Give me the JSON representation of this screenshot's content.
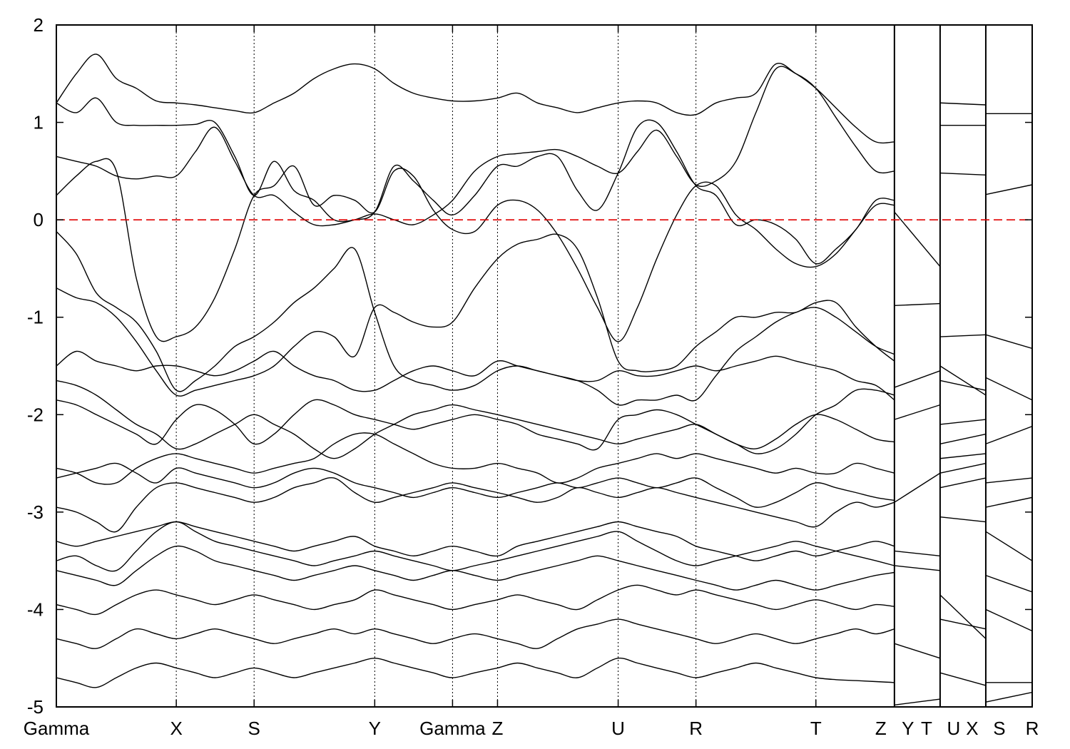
{
  "chart_data": {
    "type": "line",
    "title": "",
    "xlabel": "",
    "ylabel": "",
    "ylim": [
      -5,
      2
    ],
    "yticks": [
      2,
      1,
      0,
      -1,
      -2,
      -3,
      -4,
      -5
    ],
    "ytick_labels": [
      "2",
      "1",
      "0",
      "-1",
      "-2",
      "-3",
      "-4",
      "-5"
    ],
    "xlim": [
      0,
      1367
    ],
    "kpoints": [
      {
        "label": "Gamma",
        "x": 0
      },
      {
        "label": "X",
        "x": 168
      },
      {
        "label": "S",
        "x": 277
      },
      {
        "label": "Y",
        "x": 446
      },
      {
        "label": "Gamma",
        "x": 555
      },
      {
        "label": "Z",
        "x": 618
      },
      {
        "label": "U",
        "x": 787
      },
      {
        "label": "R",
        "x": 896
      },
      {
        "label": "T",
        "x": 1064
      },
      {
        "label": "Z",
        "x": 1174
      },
      {
        "label": "Y",
        "x": 1174
      },
      {
        "label": "T",
        "x": 1238
      },
      {
        "label": "U",
        "x": 1238
      },
      {
        "label": "X",
        "x": 1302
      },
      {
        "label": "S",
        "x": 1302
      },
      {
        "label": "R",
        "x": 1367
      }
    ],
    "kpath_labels": [
      "Gamma",
      "X",
      "S",
      "Y",
      "Gamma",
      "Z",
      "",
      "U",
      "R",
      "T",
      "Z",
      "Y",
      "T",
      "U",
      "X",
      "S",
      "R"
    ],
    "fermi_level": 0,
    "fermi_line_color": "#e00000",
    "band_color": "#000000",
    "gridlines": "vertical dotted at high-symmetry points",
    "legend": "none",
    "sampled_x": [
      0,
      28,
      56,
      84,
      112,
      140,
      168,
      195,
      222,
      250,
      277,
      305,
      333,
      361,
      389,
      418,
      446,
      473,
      500,
      528,
      555,
      586,
      618,
      646,
      674,
      702,
      730,
      758,
      787,
      814,
      841,
      869,
      896,
      924,
      952,
      980,
      1008,
      1036,
      1064,
      1092,
      1120,
      1148,
      1174
    ],
    "series": [
      {
        "values": [
          -0.12,
          -0.35,
          -0.75,
          -0.9,
          -1.05,
          -1.35,
          -1.75,
          -1.65,
          -1.5,
          -1.3,
          -1.2,
          -1.05,
          -0.85,
          -0.7,
          -0.5,
          -0.3,
          -0.95,
          -1.5,
          -1.65,
          -1.7,
          -1.75,
          -1.7,
          -1.55,
          -1.5,
          -1.55,
          -1.6,
          -1.65,
          -1.75,
          -1.9,
          -1.85,
          -1.85,
          -1.8,
          -1.85,
          -1.6,
          -1.35,
          -1.2,
          -1.05,
          -0.95,
          -0.9,
          -1.0,
          -1.15,
          -1.3,
          -1.38
        ]
      },
      {
        "values": [
          0.25,
          0.45,
          0.6,
          0.5,
          -0.6,
          -1.2,
          -1.2,
          -1.1,
          -0.8,
          -0.3,
          0.25,
          0.35,
          0.55,
          0.15,
          0.25,
          0.2,
          0.08,
          0.5,
          0.45,
          0.1,
          -0.1,
          -0.12,
          0.15,
          0.2,
          0.1,
          -0.15,
          -0.5,
          -0.9,
          -1.25,
          -0.9,
          -0.4,
          0.05,
          0.35,
          0.35,
          0.05,
          -0.1,
          -0.3,
          -0.45,
          -0.48,
          -0.35,
          -0.1,
          0.15,
          0.15
        ]
      },
      {
        "values": [
          0.65,
          0.6,
          0.55,
          0.45,
          0.42,
          0.45,
          0.45,
          0.7,
          0.95,
          0.6,
          0.25,
          0.25,
          0.08,
          -0.05,
          -0.05,
          0.0,
          0.06,
          0.0,
          -0.05,
          0.05,
          0.2,
          0.5,
          0.65,
          0.68,
          0.7,
          0.72,
          0.65,
          0.55,
          0.48,
          0.7,
          0.92,
          0.65,
          0.36,
          0.4,
          0.6,
          1.1,
          1.55,
          1.5,
          1.35,
          1.05,
          0.75,
          0.5,
          0.5
        ]
      },
      {
        "values": [
          1.2,
          1.1,
          1.25,
          1.0,
          0.97,
          0.97,
          0.97,
          0.98,
          1.0,
          0.65,
          0.25,
          0.6,
          0.3,
          0.2,
          0.0,
          0.0,
          0.08,
          0.55,
          0.4,
          0.2,
          0.05,
          0.25,
          0.55,
          0.55,
          0.65,
          0.65,
          0.3,
          0.1,
          0.48,
          0.95,
          1.0,
          0.7,
          0.35,
          0.25,
          -0.05,
          0.0,
          -0.05,
          -0.2,
          -0.45,
          -0.3,
          -0.1,
          0.2,
          0.2
        ]
      },
      {
        "values": [
          1.2,
          1.5,
          1.7,
          1.45,
          1.35,
          1.22,
          1.2,
          1.18,
          1.15,
          1.12,
          1.1,
          1.2,
          1.3,
          1.45,
          1.55,
          1.6,
          1.55,
          1.4,
          1.3,
          1.25,
          1.22,
          1.22,
          1.25,
          1.3,
          1.2,
          1.15,
          1.1,
          1.15,
          1.2,
          1.22,
          1.2,
          1.1,
          1.08,
          1.2,
          1.25,
          1.3,
          1.6,
          1.5,
          1.35,
          1.15,
          0.95,
          0.8,
          0.8
        ]
      },
      {
        "values": [
          -0.7,
          -0.8,
          -0.85,
          -1.0,
          -1.25,
          -1.55,
          -1.8,
          -1.75,
          -1.7,
          -1.65,
          -1.6,
          -1.5,
          -1.3,
          -1.15,
          -1.2,
          -1.4,
          -0.9,
          -0.95,
          -1.05,
          -1.1,
          -1.05,
          -0.7,
          -0.4,
          -0.25,
          -0.2,
          -0.15,
          -0.3,
          -0.8,
          -1.45,
          -1.55,
          -1.55,
          -1.5,
          -1.3,
          -1.15,
          -1.0,
          -1.0,
          -0.95,
          -0.95,
          -0.85,
          -0.85,
          -1.1,
          -1.3,
          -1.45
        ]
      },
      {
        "values": [
          -1.5,
          -1.35,
          -1.45,
          -1.5,
          -1.55,
          -1.5,
          -1.5,
          -1.55,
          -1.6,
          -1.55,
          -1.45,
          -1.35,
          -1.5,
          -1.6,
          -1.65,
          -1.75,
          -1.75,
          -1.65,
          -1.55,
          -1.5,
          -1.55,
          -1.6,
          -1.45,
          -1.5,
          -1.55,
          -1.6,
          -1.65,
          -1.65,
          -1.55,
          -1.6,
          -1.6,
          -1.55,
          -1.5,
          -1.55,
          -1.5,
          -1.45,
          -1.4,
          -1.45,
          -1.5,
          -1.55,
          -1.65,
          -1.7,
          -1.85
        ]
      },
      {
        "values": [
          -1.85,
          -1.9,
          -2.0,
          -2.1,
          -2.2,
          -2.3,
          -2.05,
          -1.9,
          -1.95,
          -2.1,
          -2.3,
          -2.2,
          -2.0,
          -1.85,
          -1.9,
          -2.0,
          -2.05,
          -2.1,
          -2.15,
          -2.1,
          -2.05,
          -2.0,
          -2.05,
          -2.1,
          -2.2,
          -2.25,
          -2.3,
          -2.35,
          -2.05,
          -2.0,
          -1.95,
          -2.0,
          -2.1,
          -2.2,
          -2.3,
          -2.35,
          -2.25,
          -2.1,
          -2.0,
          -2.05,
          -2.15,
          -2.25,
          -2.28
        ]
      },
      {
        "values": [
          -2.55,
          -2.6,
          -2.7,
          -2.7,
          -2.55,
          -2.45,
          -2.4,
          -2.45,
          -2.5,
          -2.55,
          -2.6,
          -2.55,
          -2.5,
          -2.45,
          -2.3,
          -2.2,
          -2.2,
          -2.3,
          -2.4,
          -2.5,
          -2.55,
          -2.55,
          -2.5,
          -2.55,
          -2.6,
          -2.7,
          -2.65,
          -2.55,
          -2.5,
          -2.45,
          -2.4,
          -2.45,
          -2.4,
          -2.45,
          -2.5,
          -2.55,
          -2.6,
          -2.55,
          -2.6,
          -2.6,
          -2.5,
          -2.55,
          -2.6
        ]
      },
      {
        "values": [
          -2.95,
          -3.0,
          -3.1,
          -3.2,
          -2.95,
          -2.75,
          -2.7,
          -2.75,
          -2.8,
          -2.85,
          -2.9,
          -2.85,
          -2.75,
          -2.7,
          -2.65,
          -2.8,
          -2.9,
          -2.85,
          -2.8,
          -2.75,
          -2.7,
          -2.75,
          -2.8,
          -2.85,
          -2.9,
          -2.85,
          -2.75,
          -2.8,
          -2.85,
          -2.8,
          -2.75,
          -2.8,
          -2.85,
          -2.9,
          -2.95,
          -3.0,
          -3.05,
          -3.1,
          -3.15,
          -3.0,
          -2.9,
          -2.95,
          -2.9
        ]
      },
      {
        "values": [
          -3.3,
          -3.35,
          -3.3,
          -3.25,
          -3.2,
          -3.15,
          -3.1,
          -3.15,
          -3.2,
          -3.25,
          -3.3,
          -3.35,
          -3.4,
          -3.35,
          -3.3,
          -3.25,
          -3.35,
          -3.4,
          -3.45,
          -3.4,
          -3.35,
          -3.4,
          -3.45,
          -3.35,
          -3.3,
          -3.25,
          -3.2,
          -3.15,
          -3.1,
          -3.15,
          -3.2,
          -3.25,
          -3.35,
          -3.4,
          -3.45,
          -3.5,
          -3.45,
          -3.4,
          -3.45,
          -3.4,
          -3.35,
          -3.3,
          -3.35
        ]
      },
      {
        "values": [
          -3.6,
          -3.65,
          -3.7,
          -3.75,
          -3.6,
          -3.45,
          -3.35,
          -3.4,
          -3.5,
          -3.55,
          -3.6,
          -3.65,
          -3.7,
          -3.65,
          -3.6,
          -3.55,
          -3.6,
          -3.65,
          -3.7,
          -3.65,
          -3.6,
          -3.65,
          -3.7,
          -3.65,
          -3.6,
          -3.55,
          -3.5,
          -3.45,
          -3.5,
          -3.55,
          -3.6,
          -3.65,
          -3.7,
          -3.75,
          -3.8,
          -3.75,
          -3.7,
          -3.75,
          -3.8,
          -3.75,
          -3.7,
          -3.65,
          -3.62
        ]
      },
      {
        "values": [
          -3.95,
          -4.0,
          -4.05,
          -3.95,
          -3.85,
          -3.8,
          -3.85,
          -3.9,
          -3.95,
          -3.9,
          -3.85,
          -3.9,
          -3.95,
          -4.0,
          -3.95,
          -3.9,
          -3.8,
          -3.85,
          -3.9,
          -3.95,
          -4.0,
          -3.95,
          -3.9,
          -3.85,
          -3.9,
          -3.95,
          -4.0,
          -3.9,
          -3.8,
          -3.75,
          -3.8,
          -3.85,
          -3.8,
          -3.85,
          -3.9,
          -3.95,
          -4.0,
          -3.95,
          -3.9,
          -3.95,
          -4.0,
          -3.95,
          -3.97
        ]
      },
      {
        "values": [
          -4.3,
          -4.35,
          -4.4,
          -4.3,
          -4.2,
          -4.25,
          -4.3,
          -4.25,
          -4.2,
          -4.25,
          -4.3,
          -4.35,
          -4.3,
          -4.25,
          -4.2,
          -4.25,
          -4.2,
          -4.25,
          -4.3,
          -4.35,
          -4.3,
          -4.25,
          -4.3,
          -4.35,
          -4.4,
          -4.3,
          -4.2,
          -4.15,
          -4.1,
          -4.15,
          -4.2,
          -4.25,
          -4.3,
          -4.35,
          -4.3,
          -4.25,
          -4.3,
          -4.35,
          -4.3,
          -4.25,
          -4.2,
          -4.25,
          -4.2
        ]
      },
      {
        "values": [
          -4.7,
          -4.75,
          -4.8,
          -4.7,
          -4.6,
          -4.55,
          -4.6,
          -4.65,
          -4.7,
          -4.65,
          -4.6,
          -4.65,
          -4.7,
          -4.65,
          -4.6,
          -4.55,
          -4.5,
          -4.55,
          -4.6,
          -4.65,
          -4.7,
          -4.65,
          -4.6,
          -4.55,
          -4.6,
          -4.65,
          -4.7,
          -4.6,
          -4.5,
          -4.55,
          -4.6,
          -4.65,
          -4.7,
          -4.65,
          -4.6,
          -4.55,
          -4.6,
          -4.65,
          -4.7,
          -4.72,
          -4.73,
          -4.74,
          -4.75
        ]
      },
      {
        "values": [
          -1.65,
          -1.7,
          -1.8,
          -1.95,
          -2.1,
          -2.2,
          -2.35,
          -2.3,
          -2.2,
          -2.1,
          -2.0,
          -2.1,
          -2.2,
          -2.35,
          -2.45,
          -2.35,
          -2.2,
          -2.1,
          -2.0,
          -1.95,
          -1.9,
          -1.95,
          -2.0,
          -2.05,
          -2.1,
          -2.15,
          -2.2,
          -2.25,
          -2.3,
          -2.25,
          -2.2,
          -2.15,
          -2.1,
          -2.2,
          -2.3,
          -2.4,
          -2.35,
          -2.2,
          -2.0,
          -1.9,
          -1.75,
          -1.75,
          -1.8
        ]
      },
      {
        "values": [
          -2.65,
          -2.6,
          -2.55,
          -2.5,
          -2.6,
          -2.7,
          -2.55,
          -2.6,
          -2.65,
          -2.7,
          -2.75,
          -2.7,
          -2.6,
          -2.55,
          -2.6,
          -2.7,
          -2.75,
          -2.8,
          -2.85,
          -2.8,
          -2.75,
          -2.8,
          -2.85,
          -2.8,
          -2.75,
          -2.7,
          -2.75,
          -2.7,
          -2.65,
          -2.7,
          -2.75,
          -2.7,
          -2.65,
          -2.75,
          -2.85,
          -2.95,
          -2.9,
          -2.8,
          -2.7,
          -2.75,
          -2.8,
          -2.85,
          -2.88
        ]
      },
      {
        "values": [
          -3.5,
          -3.45,
          -3.55,
          -3.6,
          -3.4,
          -3.2,
          -3.1,
          -3.2,
          -3.3,
          -3.35,
          -3.4,
          -3.45,
          -3.5,
          -3.55,
          -3.5,
          -3.45,
          -3.4,
          -3.45,
          -3.5,
          -3.55,
          -3.6,
          -3.55,
          -3.5,
          -3.45,
          -3.4,
          -3.35,
          -3.3,
          -3.25,
          -3.2,
          -3.3,
          -3.4,
          -3.5,
          -3.55,
          -3.5,
          -3.45,
          -3.4,
          -3.35,
          -3.3,
          -3.35,
          -3.4,
          -3.45,
          -3.5,
          -3.55
        ]
      }
    ],
    "right_panel_bands": {
      "segments": [
        {
          "from": "Y",
          "to": "T",
          "x": [
            1174,
            1238
          ],
          "values": [
            [
              0.08,
              -0.48
            ],
            [
              -0.88,
              -0.86
            ],
            [
              -1.72,
              -1.55
            ],
            [
              -2.05,
              -1.9
            ],
            [
              -2.9,
              -2.6
            ],
            [
              -3.4,
              -3.45
            ],
            [
              -3.55,
              -3.6
            ],
            [
              -4.35,
              -4.5
            ],
            [
              -4.98,
              -4.92
            ]
          ]
        },
        {
          "from": "U",
          "to": "X",
          "x": [
            1238,
            1302
          ],
          "values": [
            [
              1.2,
              1.18
            ],
            [
              0.97,
              0.97
            ],
            [
              0.48,
              0.46
            ],
            [
              -1.2,
              -1.18
            ],
            [
              -1.5,
              -1.8
            ],
            [
              -1.65,
              -1.75
            ],
            [
              -2.1,
              -2.05
            ],
            [
              -2.3,
              -2.2
            ],
            [
              -2.45,
              -2.4
            ],
            [
              -2.6,
              -2.5
            ],
            [
              -2.75,
              -2.65
            ],
            [
              -3.05,
              -3.1
            ],
            [
              -3.85,
              -4.3
            ],
            [
              -4.1,
              -4.2
            ],
            [
              -4.65,
              -4.78
            ]
          ]
        },
        {
          "from": "S",
          "to": "R",
          "x": [
            1302,
            1367
          ],
          "values": [
            [
              1.09,
              1.09
            ],
            [
              0.26,
              0.36
            ],
            [
              -1.18,
              -1.32
            ],
            [
              -1.62,
              -1.85
            ],
            [
              -2.3,
              -2.12
            ],
            [
              -2.7,
              -2.65
            ],
            [
              -2.95,
              -2.85
            ],
            [
              -3.2,
              -3.5
            ],
            [
              -3.65,
              -3.82
            ],
            [
              -4.0,
              -4.22
            ],
            [
              -4.75,
              -4.75
            ],
            [
              -4.95,
              -4.85
            ]
          ]
        }
      ]
    }
  }
}
